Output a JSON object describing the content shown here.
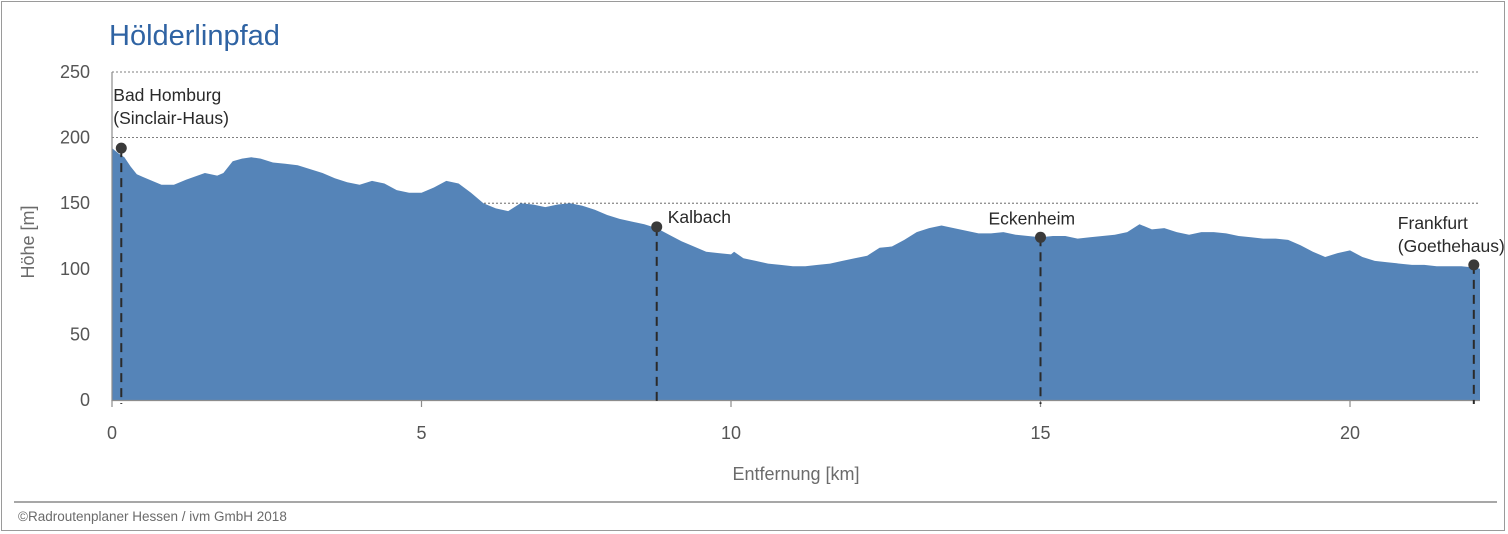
{
  "chart_data": {
    "type": "area",
    "title": "Hölderlinpfad",
    "xlabel": "Entfernung [km]",
    "ylabel": "Höhe [m]",
    "xlim": [
      0,
      22.1
    ],
    "ylim": [
      0,
      250
    ],
    "xticks": [
      0,
      5,
      10,
      15,
      20
    ],
    "yticks": [
      0,
      50,
      100,
      150,
      200,
      250
    ],
    "grid": true,
    "fill_color": "#5584b8",
    "grid_color": "#555555",
    "profile": {
      "x": [
        0,
        0.1,
        0.2,
        0.3,
        0.4,
        0.5,
        0.65,
        0.8,
        1.0,
        1.2,
        1.5,
        1.7,
        1.8,
        1.95,
        2.1,
        2.25,
        2.4,
        2.6,
        2.8,
        3.0,
        3.2,
        3.4,
        3.6,
        3.8,
        4.0,
        4.2,
        4.4,
        4.6,
        4.8,
        5.0,
        5.2,
        5.4,
        5.6,
        5.8,
        6.0,
        6.2,
        6.4,
        6.6,
        6.8,
        7.0,
        7.2,
        7.4,
        7.6,
        7.8,
        8.0,
        8.2,
        8.4,
        8.6,
        8.8,
        9.0,
        9.2,
        9.4,
        9.6,
        9.8,
        10.0,
        10.05,
        10.2,
        10.4,
        10.6,
        10.8,
        11.0,
        11.2,
        11.4,
        11.6,
        11.8,
        12.0,
        12.2,
        12.4,
        12.6,
        12.8,
        13.0,
        13.2,
        13.4,
        13.6,
        13.8,
        14.0,
        14.2,
        14.4,
        14.6,
        14.8,
        15.0,
        15.2,
        15.4,
        15.6,
        15.8,
        16.0,
        16.2,
        16.4,
        16.6,
        16.8,
        17.0,
        17.2,
        17.4,
        17.6,
        17.8,
        18.0,
        18.2,
        18.4,
        18.6,
        18.8,
        19.0,
        19.2,
        19.4,
        19.6,
        19.8,
        20.0,
        20.2,
        20.4,
        20.6,
        20.8,
        21.0,
        21.2,
        21.4,
        21.6,
        21.8,
        22.0,
        22.1
      ],
      "y": [
        192,
        188,
        185,
        178,
        172,
        170,
        167,
        164,
        164,
        168,
        173,
        171,
        173,
        182,
        184,
        185,
        184,
        181,
        180,
        179,
        176,
        173,
        169,
        166,
        164,
        167,
        165,
        160,
        158,
        158,
        162,
        167,
        165,
        158,
        150,
        146,
        144,
        150,
        149,
        147,
        149,
        150,
        148,
        145,
        141,
        138,
        136,
        134,
        131,
        126,
        121,
        117,
        113,
        112,
        111,
        113,
        108,
        106,
        104,
        103,
        102,
        102,
        103,
        104,
        106,
        108,
        110,
        116,
        117,
        122,
        128,
        131,
        133,
        131,
        129,
        127,
        127,
        128,
        126,
        125,
        124,
        125,
        125,
        123,
        124,
        125,
        126,
        128,
        134,
        130,
        131,
        128,
        126,
        128,
        128,
        127,
        125,
        124,
        123,
        123,
        122,
        118,
        113,
        109,
        112,
        114,
        109,
        106,
        105,
        104,
        103,
        103,
        102,
        102,
        102,
        101,
        100
      ]
    },
    "markers": [
      {
        "name_line1": "Bad Homburg",
        "name_line2": "(Sinclair-Haus)",
        "x": 0.15,
        "y": 192,
        "label_side": "above-right"
      },
      {
        "name_line1": "Kalbach",
        "name_line2": "",
        "x": 8.8,
        "y": 132,
        "label_side": "right"
      },
      {
        "name_line1": "Eckenheim",
        "name_line2": "",
        "x": 15.0,
        "y": 124,
        "label_side": "above"
      },
      {
        "name_line1": "Frankfurt",
        "name_line2": "(Goethehaus)",
        "x": 22.0,
        "y": 103,
        "label_side": "above-left"
      }
    ]
  },
  "footer": {
    "copyright": "©Radroutenplaner Hessen / ivm GmbH 2018"
  }
}
